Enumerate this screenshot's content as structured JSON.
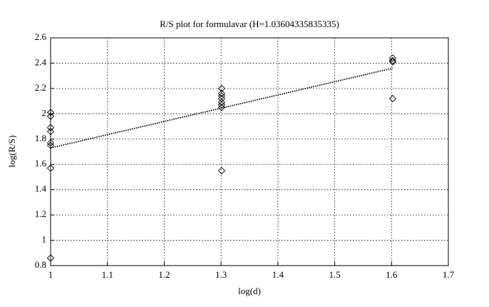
{
  "chart_data": {
    "type": "scatter",
    "title": "R/S plot for formulavar (H=1.03604335835335)",
    "x_label": "log(d)",
    "y_label": "log(R/S)",
    "xlim": [
      1,
      1.7
    ],
    "xticks": [
      1,
      1.1,
      1.2,
      1.3,
      1.4,
      1.5,
      1.6,
      1.7
    ],
    "ylim": [
      0.8,
      2.6
    ],
    "yticks": [
      0.8,
      1,
      1.2,
      1.4,
      1.6,
      1.8,
      2,
      2.2,
      2.4,
      2.6
    ],
    "grid": true,
    "series": [
      {
        "mark": "diamond",
        "color": "#000000",
        "x": [
          1,
          1,
          1,
          1,
          1,
          1,
          1,
          1,
          1.301,
          1.301,
          1.301,
          1.301,
          1.301,
          1.301,
          1.301,
          1.301,
          1.602,
          1.602,
          1.602,
          1.602
        ],
        "values": [
          2.01,
          1.98,
          1.89,
          1.86,
          1.77,
          1.75,
          1.57,
          0.86,
          2.2,
          2.16,
          2.14,
          2.12,
          2.09,
          2.07,
          2.05,
          1.55,
          2.44,
          2.42,
          2.41,
          2.12
        ]
      },
      {
        "mark": "dotted-line",
        "color": "#000000",
        "x": [
          1,
          1.602
        ],
        "values": [
          1.73,
          2.36
        ]
      }
    ]
  }
}
